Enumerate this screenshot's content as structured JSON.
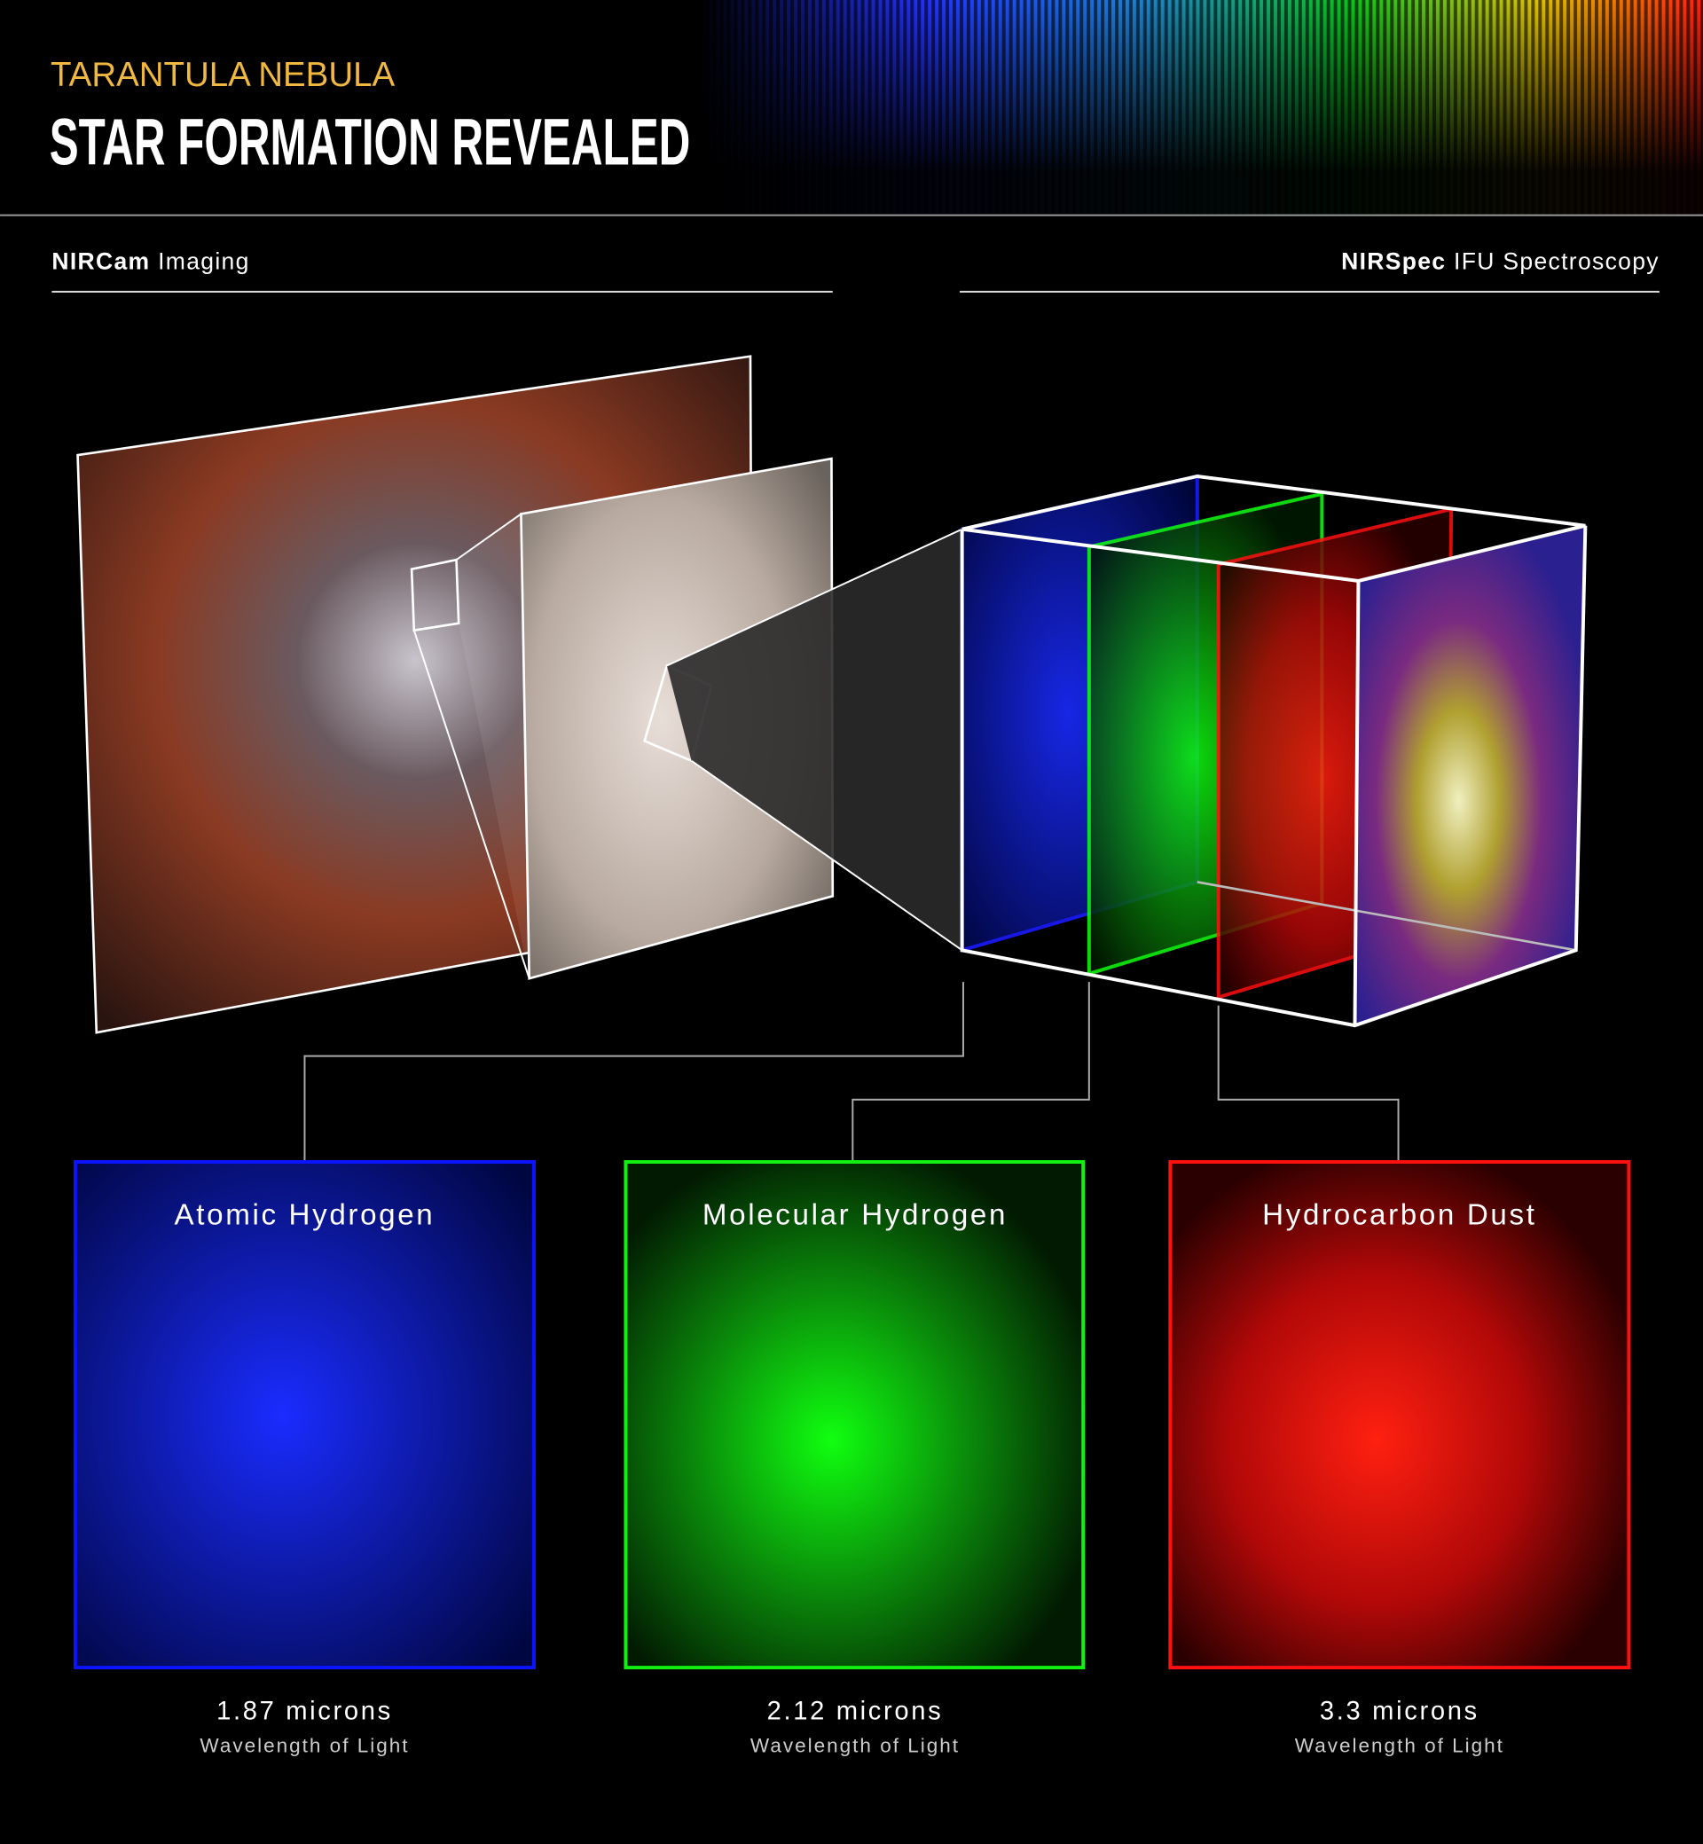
{
  "header": {
    "kicker": "TARANTULA NEBULA",
    "title": "STAR FORMATION REVEALED",
    "kicker_color": "#f0b840"
  },
  "sections": {
    "left": {
      "bold": "NIRCam",
      "rest": " Imaging"
    },
    "right": {
      "bold": "NIRSpec",
      "rest": " IFU Spectroscopy"
    }
  },
  "panels": [
    {
      "title": "Atomic Hydrogen",
      "wavelength": "1.87 microns",
      "caption": "Wavelength of Light",
      "color": "#0a14ff"
    },
    {
      "title": "Molecular Hydrogen",
      "wavelength": "2.12 microns",
      "caption": "Wavelength of Light",
      "color": "#12f012"
    },
    {
      "title": "Hydrocarbon Dust",
      "wavelength": "3.3 microns",
      "caption": "Wavelength of Light",
      "color": "#ff1010"
    }
  ]
}
